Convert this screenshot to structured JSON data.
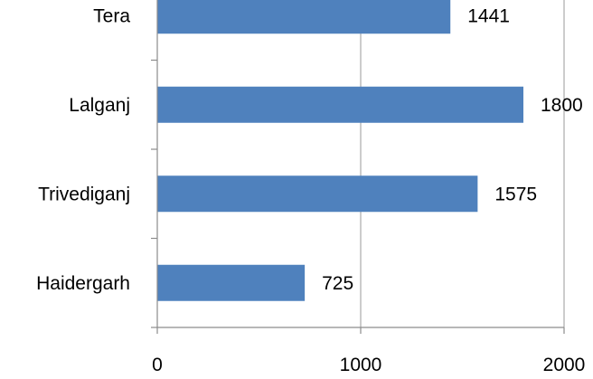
{
  "chart_data": {
    "type": "bar",
    "orientation": "horizontal",
    "categories": [
      "Tera",
      "Lalganj",
      "Trivediganj",
      "Haidergarh"
    ],
    "values": [
      1441,
      1800,
      1575,
      725
    ],
    "data_labels": [
      "1441",
      "1800",
      "1575",
      "725"
    ],
    "xlim": [
      0,
      2000
    ],
    "x_ticks": [
      0,
      1000,
      2000
    ],
    "x_tick_labels": [
      "0",
      "1000",
      "2000"
    ],
    "grid": true,
    "legend": "none",
    "bar_color": "#4f81bd"
  }
}
